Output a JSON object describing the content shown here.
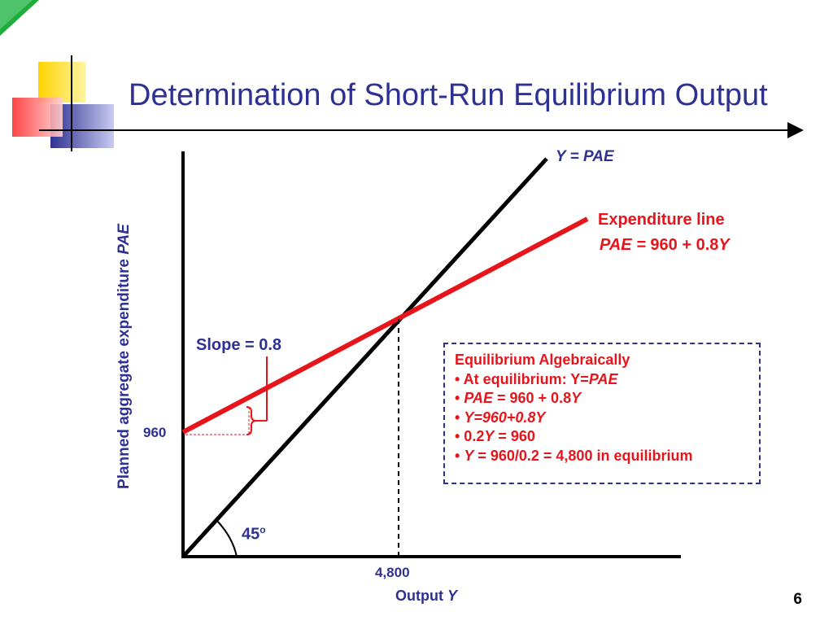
{
  "slide": {
    "title": "Determination of Short-Run Equilibrium Output",
    "page_number": "6"
  },
  "graph": {
    "y_axis_label_text": "Planned aggregate expenditure ",
    "y_axis_label_var": "PAE",
    "x_axis_label_text": "Output ",
    "x_axis_label_var": "Y",
    "x_tick_label": "4,800",
    "y_tick_label": "960",
    "line_45_label": "Y = PAE",
    "angle_label": "45",
    "angle_label_sup": "o",
    "expenditure_line_title": "Expenditure line",
    "expenditure_line_eq_var": "PAE =",
    "expenditure_line_eq_rest": " 960 + 0.8",
    "expenditure_line_eq_y": "Y",
    "slope_label": "Slope = 0.8"
  },
  "info_box": {
    "heading": "Equilibrium Algebraically",
    "line1_text": "• At equilibrium: Y=",
    "line1_var": "PAE",
    "line2_bullet": "• ",
    "line2_var": "PAE",
    "line2_rest": " = 960 + 0.8",
    "line2_y": "Y",
    "line3_bullet": "• ",
    "line3_eq": "Y=960+0.8Y",
    "line4_text": "• 0.2",
    "line4_var": "Y",
    "line4_rest": " = 960",
    "line5_bullet": "• ",
    "line5_var": "Y",
    "line5_rest": " = 960/0.2 = 4,800 in equilibrium"
  },
  "colors": {
    "title_blue": "#2e3192",
    "red": "#e8141b",
    "black": "#000000"
  }
}
